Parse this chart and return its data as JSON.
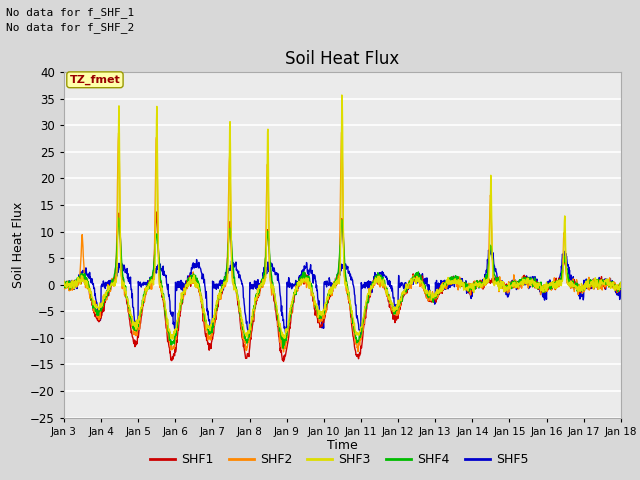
{
  "title": "Soil Heat Flux",
  "ylabel": "Soil Heat Flux",
  "xlabel": "Time",
  "annotation_lines": [
    "No data for f_SHF_1",
    "No data for f_SHF_2"
  ],
  "box_label": "TZ_fmet",
  "ylim": [
    -25,
    40
  ],
  "yticks": [
    -25,
    -20,
    -15,
    -10,
    -5,
    0,
    5,
    10,
    15,
    20,
    25,
    30,
    35,
    40
  ],
  "xtick_labels": [
    "Jan 3",
    "Jan 4",
    "Jan 5",
    "Jan 6",
    "Jan 7",
    "Jan 8",
    "Jan 9",
    "Jan 10",
    "Jan 11",
    "Jan 12",
    "Jan 13",
    "Jan 14",
    "Jan 15",
    "Jan 16",
    "Jan 17",
    "Jan 18"
  ],
  "legend_entries": [
    "SHF1",
    "SHF2",
    "SHF3",
    "SHF4",
    "SHF5"
  ],
  "colors": {
    "SHF1": "#cc0000",
    "SHF2": "#ff8800",
    "SHF3": "#dddd00",
    "SHF4": "#00bb00",
    "SHF5": "#0000cc"
  },
  "bg_color": "#d8d8d8",
  "plot_bg": "#ebebeb",
  "grid_color": "white",
  "n_points": 1500,
  "seed": 7
}
